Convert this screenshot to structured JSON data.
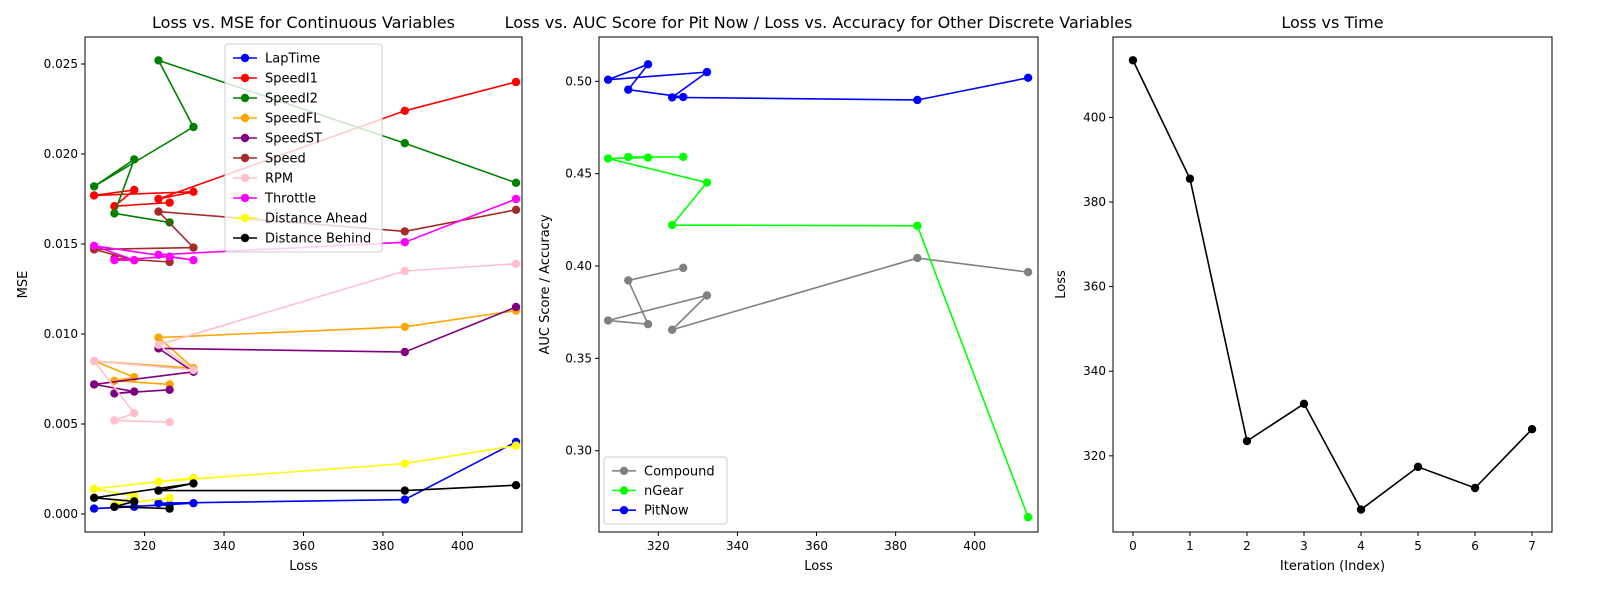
{
  "chart_data": [
    {
      "type": "line",
      "title": "Loss vs. MSE for Continuous Variables",
      "xlabel": "Loss",
      "ylabel": "MSE",
      "xlim": [
        305,
        415
      ],
      "ylim": [
        -0.001,
        0.0265
      ],
      "xticks": [
        {
          "v": 320,
          "label": "320"
        },
        {
          "v": 340,
          "label": "340"
        },
        {
          "v": 360,
          "label": "360"
        },
        {
          "v": 380,
          "label": "380"
        },
        {
          "v": 400,
          "label": "400"
        }
      ],
      "yticks": [
        {
          "v": 0,
          "label": "0.000"
        },
        {
          "v": 0.005,
          "label": "0.005"
        },
        {
          "v": 0.01,
          "label": "0.010"
        },
        {
          "v": 0.015,
          "label": "0.015"
        },
        {
          "v": 0.02,
          "label": "0.020"
        },
        {
          "v": 0.025,
          "label": "0.025"
        }
      ],
      "legend": "upper-center",
      "x": [
        413.5,
        385.5,
        323.5,
        332.3,
        307.3,
        317.4,
        312.4,
        326.3
      ],
      "series": [
        {
          "name": "LapTime",
          "color": "#0000ff",
          "values": [
            0.004,
            0.0008,
            0.0006,
            0.0006,
            0.0003,
            0.0004,
            0.0004,
            0.0005
          ]
        },
        {
          "name": "SpeedI1",
          "color": "#ff0000",
          "values": [
            0.024,
            0.0224,
            0.0175,
            0.0179,
            0.0177,
            0.018,
            0.0171,
            0.0173
          ]
        },
        {
          "name": "SpeedI2",
          "color": "#008000",
          "values": [
            0.0184,
            0.0206,
            0.0252,
            0.0215,
            0.0182,
            0.0197,
            0.0167,
            0.0162
          ]
        },
        {
          "name": "SpeedFL",
          "color": "#ffa500",
          "values": [
            0.0113,
            0.0104,
            0.0098,
            0.0081,
            0.0085,
            0.0076,
            0.0074,
            0.0072
          ]
        },
        {
          "name": "SpeedST",
          "color": "#800080",
          "values": [
            0.0115,
            0.009,
            0.0092,
            0.0079,
            0.0072,
            0.0068,
            0.0067,
            0.0069
          ]
        },
        {
          "name": "Speed",
          "color": "#a52a2a",
          "values": [
            0.0169,
            0.0157,
            0.0168,
            0.0148,
            0.0147,
            0.0141,
            0.0142,
            0.014
          ]
        },
        {
          "name": "RPM",
          "color": "#ffc0cb",
          "values": [
            0.0139,
            0.0135,
            0.0094,
            0.008,
            0.0085,
            0.0056,
            0.0052,
            0.0051
          ]
        },
        {
          "name": "Throttle",
          "color": "#ff00ff",
          "values": [
            0.0175,
            0.0151,
            0.0144,
            0.0141,
            0.0149,
            0.0141,
            0.0141,
            0.0143
          ]
        },
        {
          "name": "Distance Ahead",
          "color": "#ffff00",
          "values": [
            0.0038,
            0.0028,
            0.0018,
            0.002,
            0.0014,
            0.001,
            0.0005,
            0.0009
          ]
        },
        {
          "name": "Distance Behind",
          "color": "#000000",
          "values": [
            0.0016,
            0.0013,
            0.0013,
            0.0017,
            0.0009,
            0.0007,
            0.0004,
            0.0003
          ]
        }
      ]
    },
    {
      "type": "line",
      "title": "Loss vs. AUC Score for Pit Now / Loss vs. Accuracy for Other Discrete Variables",
      "xlabel": "Loss",
      "ylabel": "AUC Score / Accuracy",
      "xlim": [
        305,
        416
      ],
      "ylim": [
        0.256,
        0.524
      ],
      "xticks": [
        {
          "v": 320,
          "label": "320"
        },
        {
          "v": 340,
          "label": "340"
        },
        {
          "v": 360,
          "label": "360"
        },
        {
          "v": 380,
          "label": "380"
        },
        {
          "v": 400,
          "label": "400"
        }
      ],
      "yticks": [
        {
          "v": 0.3,
          "label": "0.30"
        },
        {
          "v": 0.35,
          "label": "0.35"
        },
        {
          "v": 0.4,
          "label": "0.40"
        },
        {
          "v": 0.45,
          "label": "0.45"
        },
        {
          "v": 0.5,
          "label": "0.50"
        }
      ],
      "legend": "lower-left",
      "x": [
        413.5,
        385.5,
        323.5,
        332.3,
        307.3,
        317.4,
        312.4,
        326.3
      ],
      "series": [
        {
          "name": "Compound",
          "color": "#808080",
          "values": [
            0.3967,
            0.4043,
            0.3655,
            0.3841,
            0.3705,
            0.3685,
            0.3922,
            0.399
          ]
        },
        {
          "name": "nGear",
          "color": "#00ff00",
          "values": [
            0.264,
            0.4218,
            0.4222,
            0.4452,
            0.4582,
            0.4587,
            0.459,
            0.4591
          ]
        },
        {
          "name": "PitNow",
          "color": "#0000ff",
          "values": [
            0.5019,
            0.4899,
            0.4913,
            0.505,
            0.5009,
            0.5092,
            0.4955,
            0.4915
          ]
        }
      ]
    },
    {
      "type": "line",
      "title": "Loss vs Time",
      "xlabel": "Iteration (Index)",
      "ylabel": "Loss",
      "xlim": [
        -0.35,
        7.35
      ],
      "ylim": [
        302.0,
        419.0
      ],
      "xticks": [
        {
          "v": 0,
          "label": "0"
        },
        {
          "v": 1,
          "label": "1"
        },
        {
          "v": 2,
          "label": "2"
        },
        {
          "v": 3,
          "label": "3"
        },
        {
          "v": 4,
          "label": "4"
        },
        {
          "v": 5,
          "label": "5"
        },
        {
          "v": 6,
          "label": "6"
        },
        {
          "v": 7,
          "label": "7"
        }
      ],
      "yticks": [
        {
          "v": 320,
          "label": "320"
        },
        {
          "v": 340,
          "label": "340"
        },
        {
          "v": 360,
          "label": "360"
        },
        {
          "v": 380,
          "label": "380"
        },
        {
          "v": 400,
          "label": "400"
        }
      ],
      "x": [
        0,
        1,
        2,
        3,
        4,
        5,
        6,
        7
      ],
      "series": [
        {
          "name": "",
          "color": "#000000",
          "values": [
            413.5,
            385.5,
            323.5,
            332.3,
            307.3,
            317.4,
            312.4,
            326.3
          ]
        }
      ]
    }
  ]
}
